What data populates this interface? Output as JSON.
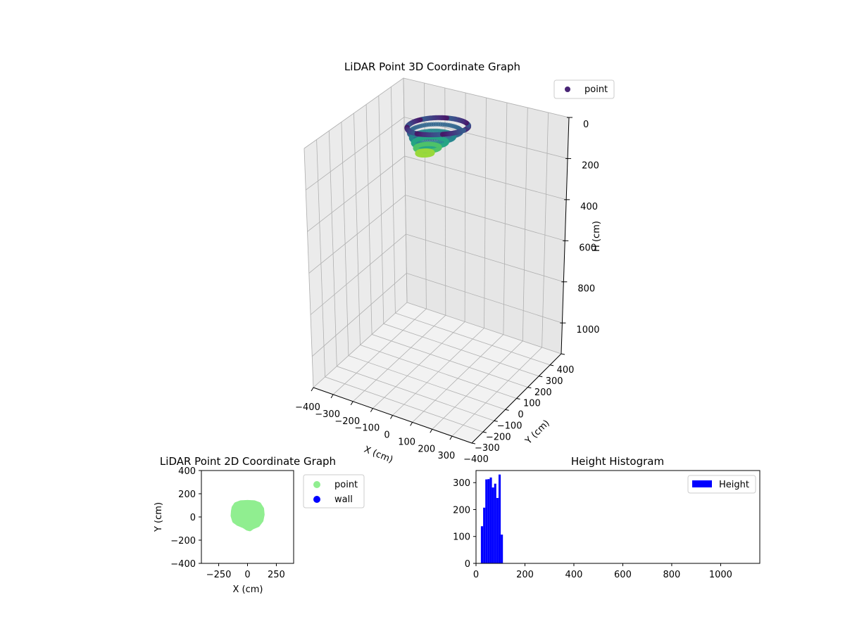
{
  "chart_data": [
    {
      "type": "scatter3d",
      "title": "LiDAR Point 3D Coordinate Graph",
      "xlabel": "X (cm)",
      "ylabel": "Y (cm)",
      "zlabel": "H (cm)",
      "xlim": [
        -400,
        400
      ],
      "ylim": [
        -400,
        400
      ],
      "zlim": [
        1150,
        0
      ],
      "x_ticks": [
        -400,
        -300,
        -200,
        -100,
        0,
        100,
        200,
        300
      ],
      "y_ticks": [
        -400,
        -300,
        -200,
        -100,
        0,
        100,
        200,
        300,
        400
      ],
      "z_ticks": [
        0,
        200,
        400,
        600,
        800,
        1000
      ],
      "x_tick_labels": [
        "−400",
        "−300",
        "−200",
        "−100",
        "0",
        "100",
        "200",
        "300"
      ],
      "y_tick_labels": [
        "−400",
        "−300",
        "−200",
        "−100",
        "0",
        "100",
        "200",
        "300",
        "400"
      ],
      "z_tick_labels": [
        "0",
        "200",
        "400",
        "600",
        "800",
        "1000"
      ],
      "z_inverted": true,
      "colormap": "viridis",
      "legend": [
        {
          "label": "point",
          "color": "#482475"
        }
      ],
      "legend_position": "top-right",
      "grid": true,
      "series": [
        {
          "name": "point",
          "description_shape": "ring of radius ~120 cm at heights 40-110 cm",
          "x_range": [
            -130,
            130
          ],
          "y_range": [
            -110,
            135
          ],
          "h_range": [
            20,
            110
          ]
        }
      ]
    },
    {
      "type": "scatter",
      "title": "LiDAR Point 2D Coordinate Graph",
      "xlabel": "X (cm)",
      "ylabel": "Y (cm)",
      "xlim": [
        -400,
        400
      ],
      "ylim": [
        -400,
        400
      ],
      "x_ticks": [
        -250,
        0,
        250
      ],
      "y_ticks": [
        -400,
        -200,
        0,
        200,
        400
      ],
      "x_tick_labels": [
        "−250",
        "0",
        "250"
      ],
      "y_tick_labels": [
        "−400",
        "−200",
        "0",
        "200",
        "400"
      ],
      "grid": false,
      "legend_position": "outside-right",
      "series": [
        {
          "name": "point",
          "color": "#90ee90",
          "outline_xy": [
            [
              -120,
              80
            ],
            [
              -100,
              110
            ],
            [
              -60,
              125
            ],
            [
              0,
              128
            ],
            [
              60,
              125
            ],
            [
              100,
              110
            ],
            [
              125,
              70
            ],
            [
              130,
              20
            ],
            [
              120,
              -30
            ],
            [
              90,
              -70
            ],
            [
              40,
              -90
            ],
            [
              20,
              -105
            ],
            [
              0,
              -100
            ],
            [
              -30,
              -80
            ],
            [
              -80,
              -60
            ],
            [
              -115,
              -35
            ],
            [
              -128,
              10
            ],
            [
              -125,
              50
            ]
          ]
        },
        {
          "name": "wall",
          "color": "#0000ff",
          "points": []
        }
      ]
    },
    {
      "type": "bar",
      "title": "Height Histogram",
      "xlabel": "",
      "ylabel": "",
      "xlim": [
        0,
        1160
      ],
      "ylim": [
        0,
        345
      ],
      "x_ticks": [
        0,
        200,
        400,
        600,
        800,
        1000
      ],
      "y_ticks": [
        0,
        100,
        200,
        300
      ],
      "legend": [
        {
          "label": "Height",
          "color": "#0000ff"
        }
      ],
      "legend_position": "top-right",
      "series": [
        {
          "name": "Height",
          "color": "#0000ff",
          "bins": [
            {
              "x0": 20,
              "x1": 29,
              "value": 138
            },
            {
              "x0": 29,
              "x1": 38,
              "value": 207
            },
            {
              "x0": 38,
              "x1": 47,
              "value": 312
            },
            {
              "x0": 47,
              "x1": 56,
              "value": 313
            },
            {
              "x0": 56,
              "x1": 65,
              "value": 319
            },
            {
              "x0": 65,
              "x1": 74,
              "value": 282
            },
            {
              "x0": 74,
              "x1": 83,
              "value": 296
            },
            {
              "x0": 83,
              "x1": 92,
              "value": 243
            },
            {
              "x0": 92,
              "x1": 101,
              "value": 330
            },
            {
              "x0": 101,
              "x1": 110,
              "value": 107
            }
          ]
        }
      ]
    }
  ]
}
